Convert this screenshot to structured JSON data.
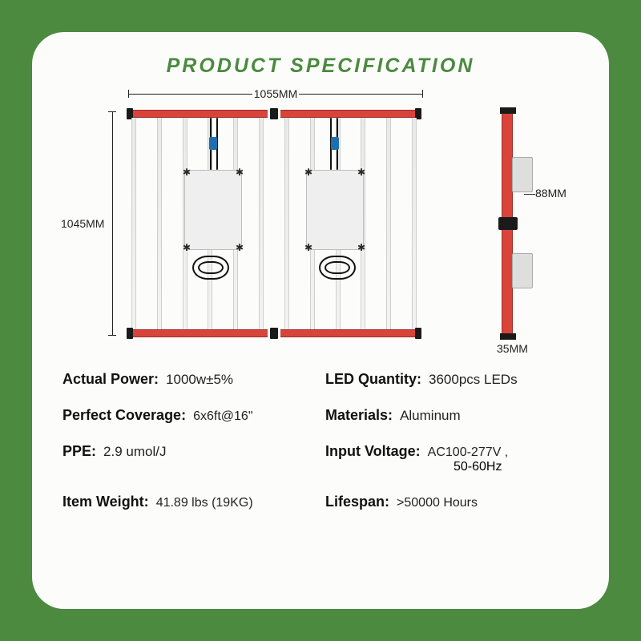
{
  "title": "PRODUCT SPECIFICATION",
  "colors": {
    "page_bg": "#4b8a3f",
    "card_bg": "#fcfdfb",
    "title": "#4b8a3f",
    "rail": "#d9443a",
    "rail_border": "#9a2f28",
    "hardware": "#1a1a1a",
    "connector": "#1f6fb0",
    "led_bar_fill": "#efefef",
    "led_bar_border": "#cfcfcf",
    "driver_fill": "#efefef",
    "driver_border": "#bdbdbd",
    "dim_text": "#222222"
  },
  "diagram": {
    "front": {
      "width_label": "1055MM",
      "height_label": "1045MM",
      "led_bar_count": 12,
      "drivers": 2,
      "cables_per_driver": 2
    },
    "side": {
      "depth_label": "88MM",
      "thickness_label": "35MM",
      "driver_boxes": 2
    }
  },
  "specs": {
    "left": [
      {
        "k": "Actual Power:",
        "v": "1000w±5%"
      },
      {
        "k": "Perfect Coverage:",
        "v": "6x6ft@16\""
      },
      {
        "k": "PPE:",
        "v": "2.9 umol/J"
      },
      {
        "k": "Item Weight:",
        "v": "41.89 lbs (19KG)"
      }
    ],
    "right": [
      {
        "k": "LED Quantity:",
        "v": "3600pcs LEDs"
      },
      {
        "k": "Materials:",
        "v": "Aluminum"
      },
      {
        "k": "Input Voltage:",
        "v": "AC100-277V ,",
        "v2": "50-60Hz"
      },
      {
        "k": "Lifespan:",
        "v": ">50000 Hours"
      }
    ]
  }
}
